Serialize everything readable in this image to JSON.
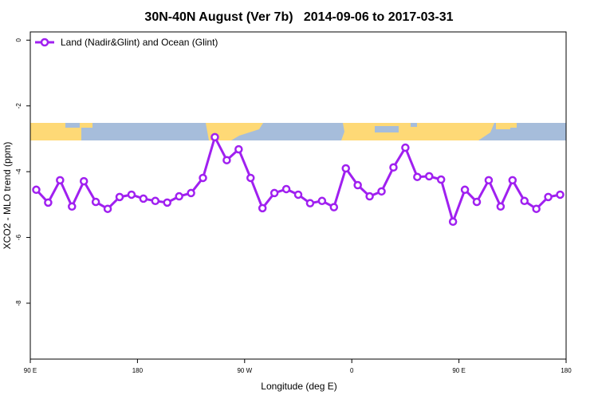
{
  "chart_data": {
    "type": "line",
    "title": "30N-40N August (Ver 7b)   2014-09-06 to 2017-03-31",
    "x_label": "Longitude (deg E)",
    "y_label": "XCO2 - MLO trend (ppm)",
    "x": [
      95,
      105,
      115,
      125,
      135,
      145,
      155,
      165,
      175,
      185,
      195,
      205,
      215,
      225,
      235,
      245,
      255,
      265,
      275,
      285,
      295,
      305,
      315,
      325,
      335,
      345,
      355,
      365,
      375,
      385,
      395,
      405,
      415,
      425,
      435,
      445,
      455,
      465,
      475,
      485,
      495,
      505,
      515,
      525,
      535
    ],
    "series": [
      {
        "name": "Land (Nadir&Glint) and Ocean (Glint)",
        "color": "#a020f0",
        "values": [
          -4.55,
          -4.94,
          -4.26,
          -5.06,
          -4.29,
          -4.92,
          -5.13,
          -4.77,
          -4.7,
          -4.82,
          -4.89,
          -4.94,
          -4.75,
          -4.65,
          -4.19,
          -2.95,
          -3.65,
          -3.32,
          -4.19,
          -5.11,
          -4.65,
          -4.53,
          -4.7,
          -4.96,
          -4.89,
          -5.08,
          -3.9,
          -4.41,
          -4.75,
          -4.6,
          -3.87,
          -3.27,
          -4.16,
          -4.14,
          -4.24,
          -5.52,
          -4.55,
          -4.92,
          -4.26,
          -5.06,
          -4.26,
          -4.89,
          -5.13,
          -4.77,
          -4.7
        ]
      }
    ],
    "xlim": [
      90,
      540
    ],
    "xticks": [
      {
        "value": 90,
        "label": "90 E"
      },
      180,
      {
        "value": 270,
        "label": "90 W"
      },
      {
        "value": 360,
        "label": "0"
      },
      {
        "value": 450,
        "label": "90 E"
      },
      {
        "value": 540,
        "label": "180"
      }
    ],
    "ylim": [
      -9.7,
      0.25
    ],
    "yticks": [
      0,
      -2,
      -4,
      -6,
      -8
    ],
    "legend": "top-left"
  }
}
